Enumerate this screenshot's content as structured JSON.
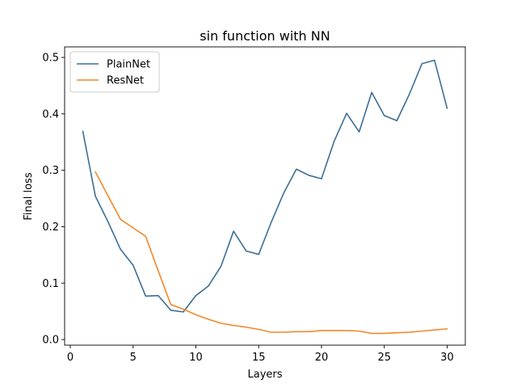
{
  "chart_data": {
    "type": "line",
    "title": "sin function with NN",
    "xlabel": "Layers",
    "ylabel": "Final loss",
    "xlim": [
      -0.45,
      31.45
    ],
    "ylim": [
      -0.0099,
      0.5187
    ],
    "xticks": [
      0,
      5,
      10,
      15,
      20,
      25,
      30
    ],
    "yticks": [
      0.0,
      0.1,
      0.2,
      0.3,
      0.4,
      0.5
    ],
    "ytick_labels": [
      "0.0",
      "0.1",
      "0.2",
      "0.3",
      "0.4",
      "0.5"
    ],
    "grid": false,
    "legend": "top-left",
    "series": [
      {
        "name": "PlainNet",
        "color": "#3b6e96",
        "x": [
          1,
          2,
          3,
          4,
          5,
          6,
          7,
          8,
          9,
          10,
          11,
          12,
          13,
          14,
          15,
          16,
          17,
          18,
          19,
          20,
          21,
          22,
          23,
          24,
          25,
          26,
          27,
          28,
          29,
          30
        ],
        "values": [
          0.369,
          0.254,
          0.209,
          0.16,
          0.132,
          0.077,
          0.078,
          0.052,
          0.049,
          0.078,
          0.095,
          0.13,
          0.192,
          0.157,
          0.151,
          0.208,
          0.26,
          0.302,
          0.291,
          0.285,
          0.351,
          0.401,
          0.368,
          0.438,
          0.397,
          0.388,
          0.435,
          0.489,
          0.495,
          0.41
        ]
      },
      {
        "name": "ResNet",
        "color": "#f0892b",
        "x": [
          2,
          3,
          4,
          5,
          6,
          7,
          8,
          9,
          10,
          11,
          12,
          13,
          14,
          15,
          16,
          17,
          18,
          19,
          20,
          21,
          22,
          23,
          24,
          25,
          26,
          27,
          28,
          29,
          30
        ],
        "values": [
          0.297,
          0.255,
          0.213,
          0.198,
          0.183,
          0.122,
          0.062,
          0.054,
          0.044,
          0.036,
          0.029,
          0.025,
          0.022,
          0.018,
          0.013,
          0.013,
          0.014,
          0.014,
          0.016,
          0.016,
          0.016,
          0.015,
          0.011,
          0.011,
          0.012,
          0.013,
          0.015,
          0.017,
          0.019
        ]
      }
    ]
  }
}
